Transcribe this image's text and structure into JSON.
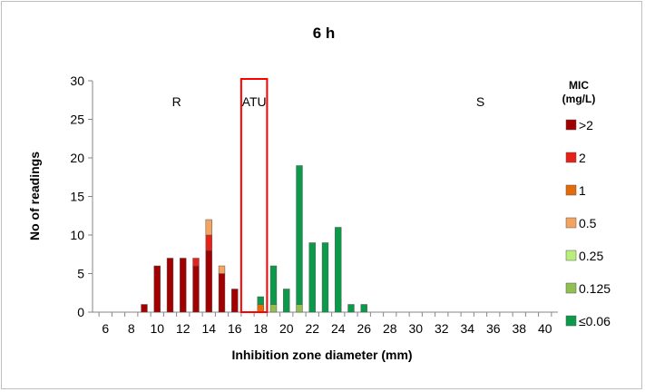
{
  "chart_data": {
    "type": "bar",
    "stacked": true,
    "title": "6 h",
    "xlabel": "Inhibition zone diameter (mm)",
    "ylabel": "No of readings",
    "xlim": [
      5,
      41
    ],
    "ylim": [
      0,
      30
    ],
    "x_ticks": [
      6,
      8,
      10,
      12,
      14,
      16,
      18,
      20,
      22,
      24,
      26,
      28,
      30,
      32,
      34,
      36,
      38,
      40
    ],
    "y_ticks": [
      0,
      5,
      10,
      15,
      20,
      25,
      30
    ],
    "region_labels": [
      {
        "text": "R",
        "x": 11.5
      },
      {
        "text": "ATU",
        "x": 17.5
      },
      {
        "text": "S",
        "x": 35
      }
    ],
    "atu_box": {
      "x_from": 16.5,
      "x_to": 18.5,
      "color": "#ff0000"
    },
    "legend": {
      "title_line1": "MIC",
      "title_line2": "(mg/L)",
      "placement": "right"
    },
    "x": [
      9,
      10,
      11,
      12,
      13,
      14,
      15,
      16,
      17,
      18,
      19,
      20,
      21,
      22,
      23,
      24,
      25,
      26
    ],
    "series": [
      {
        "name": ">2",
        "color": "#a20000",
        "values": [
          1,
          6,
          7,
          7,
          6,
          8,
          5,
          3,
          0,
          0,
          0,
          0,
          0,
          0,
          0,
          0,
          0,
          0
        ]
      },
      {
        "name": "2",
        "color": "#e8201a",
        "values": [
          0,
          0,
          0,
          0,
          1,
          2,
          0,
          0,
          0,
          0,
          0,
          0,
          0,
          0,
          0,
          0,
          0,
          0
        ]
      },
      {
        "name": "1",
        "color": "#e36c09",
        "values": [
          0,
          0,
          0,
          0,
          0,
          0,
          0,
          0,
          0,
          1,
          0,
          0,
          0,
          0,
          0,
          0,
          0,
          0
        ]
      },
      {
        "name": "0.5",
        "color": "#f4a460",
        "values": [
          0,
          0,
          0,
          0,
          0,
          2,
          1,
          0,
          0,
          0,
          0,
          0,
          0,
          0,
          0,
          0,
          0,
          0
        ]
      },
      {
        "name": "0.25",
        "color": "#b8ef7a",
        "values": [
          0,
          0,
          0,
          0,
          0,
          0,
          0,
          0,
          0,
          0,
          0,
          0,
          0,
          0,
          0,
          0,
          0,
          0
        ]
      },
      {
        "name": "0.125",
        "color": "#92c050",
        "values": [
          0,
          0,
          0,
          0,
          0,
          0,
          0,
          0,
          0,
          0,
          1,
          0,
          1,
          0,
          0,
          0,
          0,
          0
        ]
      },
      {
        "name": "≤0.06",
        "color": "#0a9a4a",
        "values": [
          0,
          0,
          0,
          0,
          0,
          0,
          0,
          0,
          0,
          1,
          5,
          3,
          18,
          9,
          9,
          11,
          1,
          1
        ]
      }
    ]
  }
}
